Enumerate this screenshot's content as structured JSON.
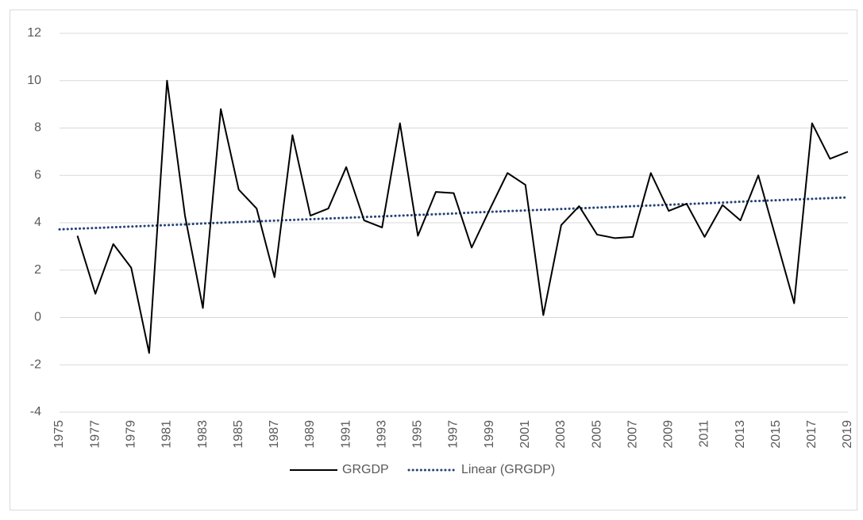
{
  "chart_data": {
    "type": "line",
    "categories": [
      "1975",
      null,
      "1977",
      null,
      "1979",
      null,
      "1981",
      null,
      "1983",
      null,
      "1985",
      null,
      "1987",
      null,
      "1989",
      null,
      "1991",
      null,
      "1993",
      null,
      "1995",
      null,
      "1997",
      null,
      "1999",
      null,
      "2001",
      null,
      "2003",
      null,
      "2005",
      null,
      "2007",
      null,
      "2009",
      null,
      "2011",
      null,
      "2013",
      null,
      "2015",
      null,
      "2017",
      null,
      "2019"
    ],
    "series": [
      {
        "name": "GRGDP",
        "color": "#000000",
        "dash": "solid",
        "values": [
          null,
          3.45,
          1.0,
          3.1,
          2.1,
          -1.5,
          10.0,
          4.3,
          0.4,
          8.8,
          5.4,
          4.6,
          1.7,
          7.7,
          4.3,
          4.6,
          6.35,
          4.1,
          3.8,
          8.2,
          3.45,
          5.3,
          5.25,
          2.95,
          4.55,
          6.1,
          5.6,
          0.1,
          3.9,
          4.7,
          3.5,
          3.35,
          3.4,
          6.1,
          4.5,
          4.8,
          3.4,
          4.75,
          4.1,
          6.0,
          3.3,
          0.6,
          8.2,
          6.7,
          7.0
        ]
      },
      {
        "name": "Linear (GRGDP)",
        "color": "#264478",
        "dash": "dotted",
        "values": [
          3.72,
          3.75,
          3.78,
          3.81,
          3.84,
          3.87,
          3.9,
          3.93,
          3.97,
          4.0,
          4.03,
          4.06,
          4.09,
          4.12,
          4.15,
          4.18,
          4.21,
          4.24,
          4.27,
          4.3,
          4.33,
          4.36,
          4.39,
          4.43,
          4.46,
          4.49,
          4.52,
          4.55,
          4.58,
          4.61,
          4.64,
          4.67,
          4.7,
          4.73,
          4.76,
          4.79,
          4.82,
          4.85,
          4.89,
          4.92,
          4.95,
          4.98,
          5.01,
          5.04,
          5.07
        ]
      }
    ],
    "ylim": [
      -4,
      12
    ],
    "yticks": [
      -4,
      -2,
      0,
      2,
      4,
      6,
      8,
      10,
      12
    ],
    "grid": true,
    "legend": "bottom"
  }
}
